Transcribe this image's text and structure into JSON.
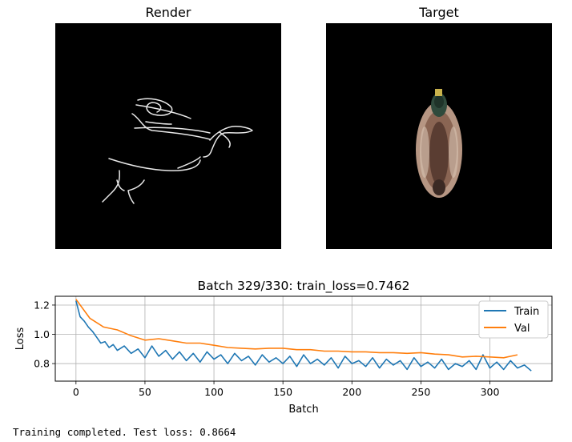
{
  "render_panel": {
    "title": "Render"
  },
  "target_panel": {
    "title": "Target"
  },
  "chart_data": {
    "type": "line",
    "title": "Batch 329/330: train_loss=0.7462",
    "xlabel": "Batch",
    "ylabel": "Loss",
    "xlim": [
      -15,
      345
    ],
    "ylim": [
      0.68,
      1.26
    ],
    "xticks": [
      0,
      50,
      100,
      150,
      200,
      250,
      300
    ],
    "yticks": [
      0.8,
      1.0,
      1.2
    ],
    "ytick_labels": [
      "0.8",
      "1.0",
      "1.2"
    ],
    "grid": true,
    "legend_position": "top-right",
    "colors": {
      "train": "#1f77b4",
      "val": "#ff7f0e"
    },
    "series": [
      {
        "name": "Train",
        "x": [
          0,
          3,
          6,
          9,
          12,
          15,
          18,
          21,
          24,
          27,
          30,
          35,
          40,
          45,
          50,
          55,
          60,
          65,
          70,
          75,
          80,
          85,
          90,
          95,
          100,
          105,
          110,
          115,
          120,
          125,
          130,
          135,
          140,
          145,
          150,
          155,
          160,
          165,
          170,
          175,
          180,
          185,
          190,
          195,
          200,
          205,
          210,
          215,
          220,
          225,
          230,
          235,
          240,
          245,
          250,
          255,
          260,
          265,
          270,
          275,
          280,
          285,
          290,
          295,
          300,
          305,
          310,
          315,
          320,
          325,
          330
        ],
        "y": [
          1.23,
          1.12,
          1.09,
          1.05,
          1.02,
          0.98,
          0.94,
          0.95,
          0.91,
          0.93,
          0.89,
          0.92,
          0.87,
          0.9,
          0.84,
          0.92,
          0.85,
          0.89,
          0.83,
          0.88,
          0.82,
          0.87,
          0.81,
          0.88,
          0.83,
          0.86,
          0.8,
          0.87,
          0.82,
          0.85,
          0.79,
          0.86,
          0.81,
          0.84,
          0.8,
          0.85,
          0.78,
          0.86,
          0.8,
          0.83,
          0.79,
          0.84,
          0.77,
          0.85,
          0.8,
          0.82,
          0.78,
          0.84,
          0.77,
          0.83,
          0.79,
          0.82,
          0.76,
          0.84,
          0.78,
          0.81,
          0.77,
          0.83,
          0.76,
          0.8,
          0.78,
          0.82,
          0.76,
          0.86,
          0.77,
          0.81,
          0.76,
          0.82,
          0.77,
          0.79,
          0.75
        ]
      },
      {
        "name": "Val",
        "x": [
          0,
          10,
          20,
          30,
          40,
          50,
          60,
          70,
          80,
          90,
          100,
          110,
          120,
          130,
          140,
          150,
          160,
          170,
          180,
          190,
          200,
          210,
          220,
          230,
          240,
          250,
          260,
          270,
          280,
          290,
          300,
          310,
          320
        ],
        "y": [
          1.24,
          1.11,
          1.05,
          1.03,
          0.99,
          0.96,
          0.97,
          0.955,
          0.94,
          0.94,
          0.925,
          0.91,
          0.905,
          0.9,
          0.905,
          0.905,
          0.895,
          0.895,
          0.885,
          0.885,
          0.88,
          0.88,
          0.875,
          0.875,
          0.87,
          0.875,
          0.865,
          0.86,
          0.845,
          0.85,
          0.845,
          0.84,
          0.86
        ]
      }
    ]
  },
  "status_text": "Training completed. Test loss: 0.8664"
}
